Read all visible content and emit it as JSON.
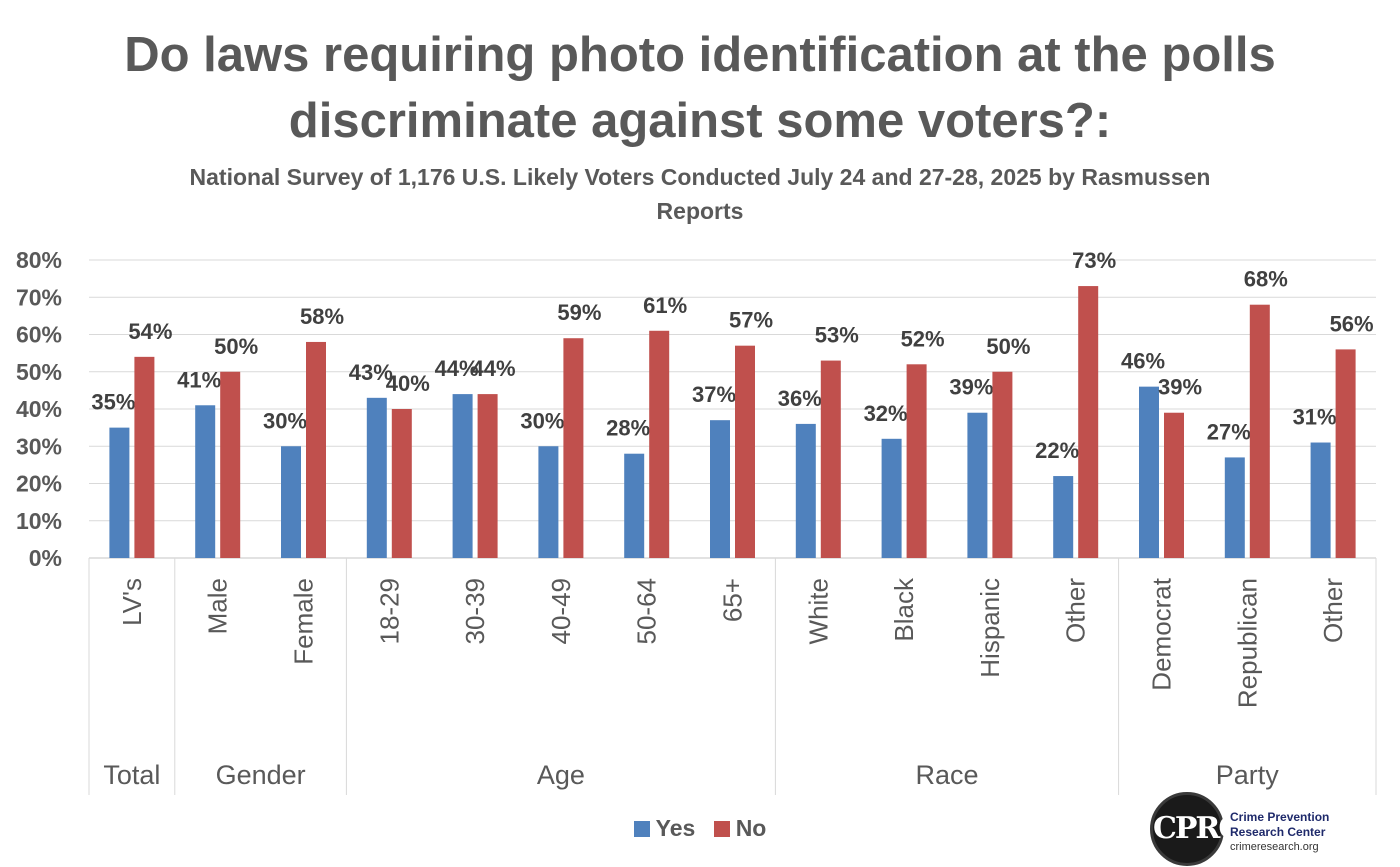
{
  "chart_data": {
    "type": "bar",
    "title": "Do laws requiring photo identification at the polls discriminate against some voters?:",
    "subtitle": "National Survey of 1,176 U.S. Likely Voters Conducted July 24 and 27-28, 2025 by Rasmussen Reports",
    "categories": [
      "LV's",
      "Male",
      "Female",
      "18-29",
      "30-39",
      "40-49",
      "50-64",
      "65+",
      "White",
      "Black",
      "Hispanic",
      "Other",
      "Democrat",
      "Republican",
      "Other"
    ],
    "groups": [
      {
        "label": "Total",
        "count": 1
      },
      {
        "label": "Gender",
        "count": 2
      },
      {
        "label": "Age",
        "count": 5
      },
      {
        "label": "Race",
        "count": 4
      },
      {
        "label": "Party",
        "count": 3
      }
    ],
    "series": [
      {
        "name": "Yes",
        "color": "#4f81bd",
        "values": [
          35,
          41,
          30,
          43,
          44,
          30,
          28,
          37,
          36,
          32,
          39,
          22,
          46,
          27,
          31
        ]
      },
      {
        "name": "No",
        "color": "#c0504d",
        "values": [
          54,
          50,
          58,
          40,
          44,
          59,
          61,
          57,
          53,
          52,
          50,
          73,
          39,
          68,
          56
        ]
      }
    ],
    "value_suffix": "%",
    "ylim": [
      0,
      80
    ],
    "yticks": [
      "0%",
      "10%",
      "20%",
      "30%",
      "40%",
      "50%",
      "60%",
      "70%",
      "80%"
    ],
    "grid": true,
    "legend_position": "bottom"
  },
  "logo": {
    "initials": "CPRC",
    "line1": "Crime Prevention",
    "line2": "Research Center",
    "url": "crimeresearch.org"
  }
}
